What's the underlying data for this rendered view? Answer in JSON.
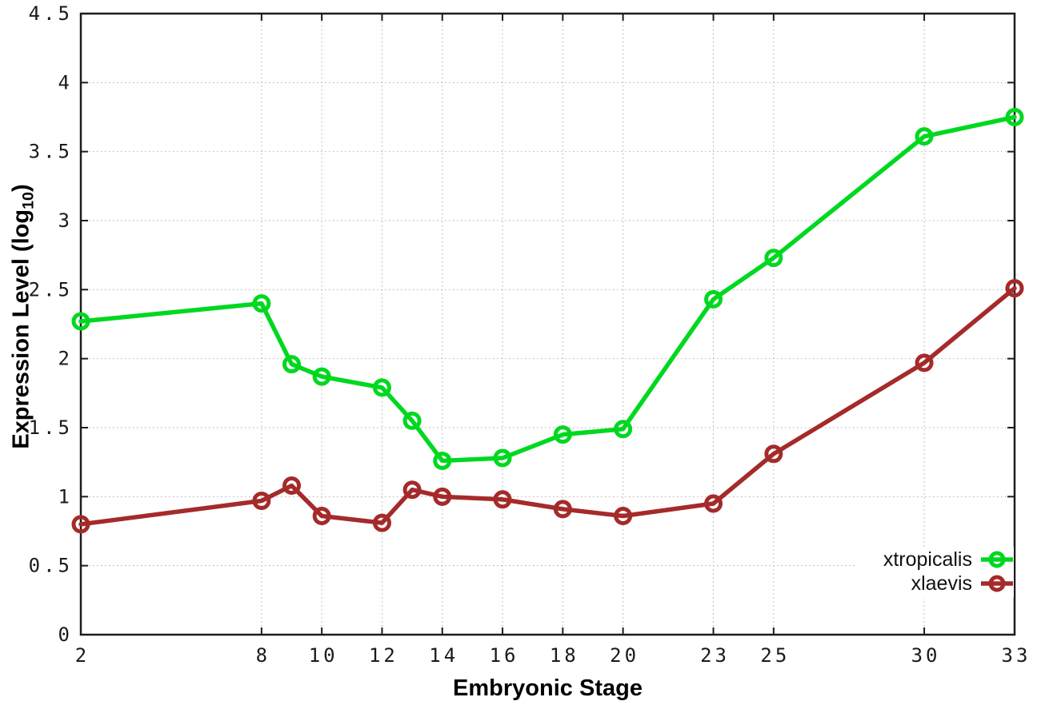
{
  "figure": {
    "background": "#ffffff",
    "border_color": "#1c1c1c",
    "grid_color": "#b0b0b0",
    "tick_label_color": "#1a1a1a"
  },
  "chart_data": {
    "type": "line",
    "title": "",
    "xlabel": "Embryonic Stage",
    "ylabel": "Expression Level (log10)",
    "ylabel_parts": {
      "main": "Expression Level (log",
      "sub": "10",
      "close": ")"
    },
    "xlim": [
      2,
      33
    ],
    "ylim": [
      0,
      4.5
    ],
    "grid": true,
    "legend_position": "bottom-right",
    "x_ticks": [
      2,
      8,
      10,
      12,
      14,
      16,
      18,
      20,
      23,
      25,
      30,
      33
    ],
    "x_tick_labels": [
      "2",
      "8",
      "10",
      "12",
      "14",
      "16",
      "18",
      "20",
      "23",
      "25",
      "30",
      "33"
    ],
    "y_ticks": [
      0,
      0.5,
      1,
      1.5,
      2,
      2.5,
      3,
      3.5,
      4,
      4.5
    ],
    "y_tick_labels": [
      "0",
      "0.5",
      "1",
      "1.5",
      "2",
      "2.5",
      "3",
      "3.5",
      "4",
      "4.5"
    ],
    "x": [
      2,
      8,
      9,
      10,
      12,
      13,
      14,
      16,
      18,
      20,
      23,
      25,
      30,
      33
    ],
    "series": [
      {
        "name": "xtropicalis",
        "color": "#00d820",
        "marker": "open-circle",
        "values": [
          2.27,
          2.4,
          1.96,
          1.87,
          1.79,
          1.55,
          1.26,
          1.28,
          1.45,
          1.49,
          2.43,
          2.73,
          3.61,
          3.75
        ]
      },
      {
        "name": "xlaevis",
        "color": "#a52a2a",
        "marker": "open-circle",
        "values": [
          0.8,
          0.97,
          1.08,
          0.86,
          0.81,
          1.05,
          1.0,
          0.98,
          0.91,
          0.86,
          0.95,
          1.31,
          1.97,
          2.51
        ]
      }
    ]
  }
}
